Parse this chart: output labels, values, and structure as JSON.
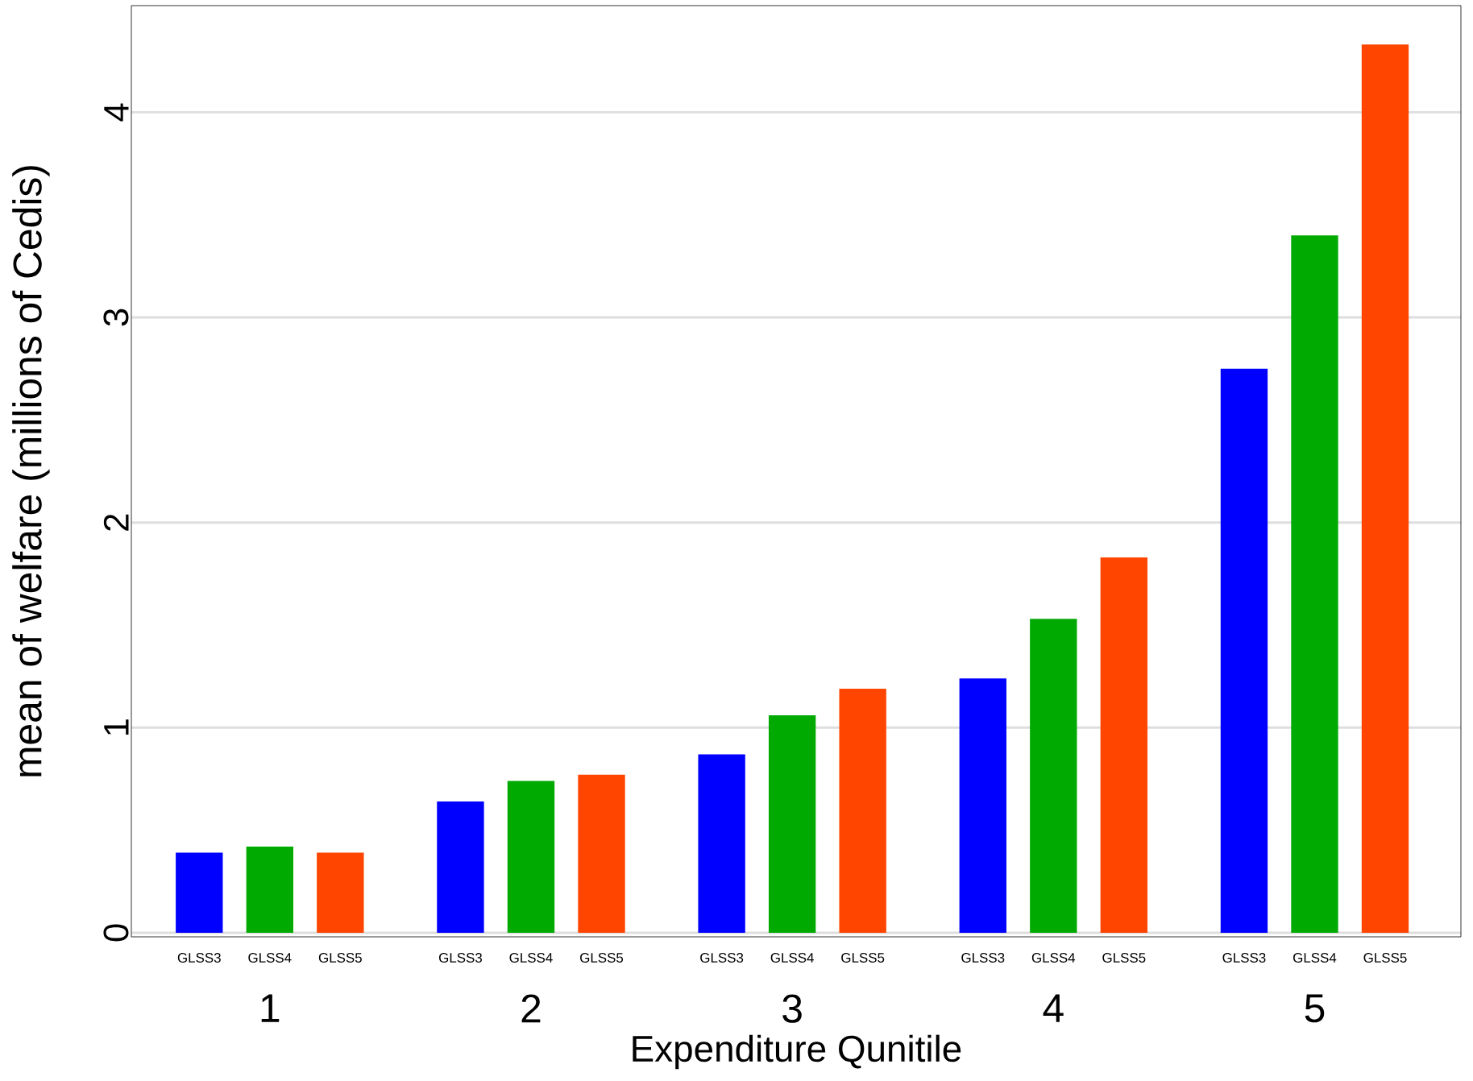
{
  "chart_data": {
    "type": "bar",
    "xlabel": "Expenditure Qunitile",
    "ylabel": "mean of welfare (millions of Cedis)",
    "categories": [
      "1",
      "2",
      "3",
      "4",
      "5"
    ],
    "series": [
      {
        "name": "GLSS3",
        "color": "#0000ff",
        "values": [
          0.39,
          0.64,
          0.87,
          1.24,
          2.75
        ]
      },
      {
        "name": "GLSS4",
        "color": "#00aa00",
        "values": [
          0.42,
          0.74,
          1.06,
          1.53,
          3.4
        ]
      },
      {
        "name": "GLSS5",
        "color": "#ff4500",
        "values": [
          0.39,
          0.77,
          1.19,
          1.83,
          4.33
        ]
      }
    ],
    "ylim": [
      -0.02,
      4.52
    ],
    "yticks": [
      0,
      1,
      2,
      3,
      4
    ],
    "grid": "y"
  }
}
